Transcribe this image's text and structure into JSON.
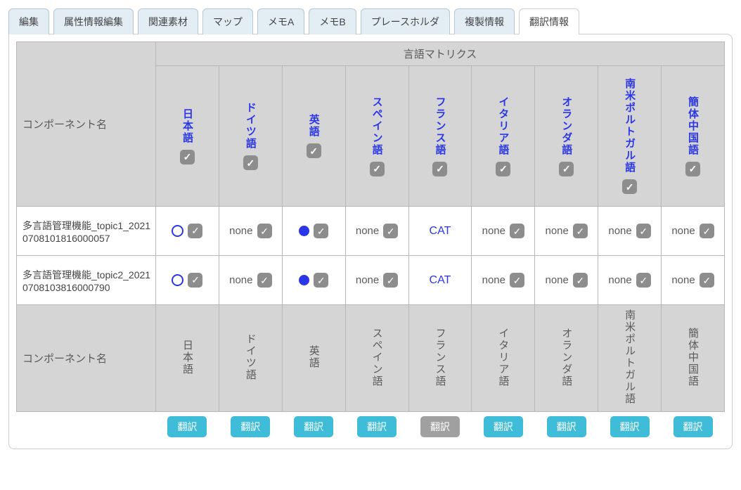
{
  "tabs": [
    {
      "label": "編集",
      "active": false
    },
    {
      "label": "属性情報編集",
      "active": false
    },
    {
      "label": "関連素材",
      "active": false
    },
    {
      "label": "マップ",
      "active": false
    },
    {
      "label": "メモA",
      "active": false
    },
    {
      "label": "メモB",
      "active": false
    },
    {
      "label": "プレースホルダ",
      "active": false
    },
    {
      "label": "複製情報",
      "active": false
    },
    {
      "label": "翻訳情報",
      "active": true
    }
  ],
  "matrix_title": "言語マトリクス",
  "component_col_label": "コンポーネント名",
  "languages": [
    "日本語",
    "ドイツ語",
    "英語",
    "スペイン語",
    "フランス語",
    "イタリア語",
    "オランダ語",
    "南米ポルトガル語",
    "簡体中国語"
  ],
  "rows": [
    {
      "name": "多言語管理機能_topic1_20210708101816000057",
      "cells": [
        {
          "kind": "open",
          "chk": true
        },
        {
          "kind": "none",
          "chk": true
        },
        {
          "kind": "filled",
          "chk": true
        },
        {
          "kind": "none",
          "chk": true
        },
        {
          "kind": "cat",
          "chk": false
        },
        {
          "kind": "none",
          "chk": true
        },
        {
          "kind": "none",
          "chk": true
        },
        {
          "kind": "none",
          "chk": true
        },
        {
          "kind": "none",
          "chk": true
        }
      ]
    },
    {
      "name": "多言語管理機能_topic2_20210708103816000790",
      "cells": [
        {
          "kind": "open",
          "chk": true
        },
        {
          "kind": "none",
          "chk": true
        },
        {
          "kind": "filled",
          "chk": true
        },
        {
          "kind": "none",
          "chk": true
        },
        {
          "kind": "cat",
          "chk": false
        },
        {
          "kind": "none",
          "chk": true
        },
        {
          "kind": "none",
          "chk": true
        },
        {
          "kind": "none",
          "chk": true
        },
        {
          "kind": "none",
          "chk": true
        }
      ]
    }
  ],
  "translate_label": "翻訳",
  "translate_enabled": [
    true,
    true,
    true,
    true,
    false,
    true,
    true,
    true,
    true
  ],
  "labels": {
    "none": "none",
    "cat": "CAT"
  },
  "colors": {
    "tab_bg": "#e2edf4",
    "tab_border": "#b6c6d2",
    "panel_border": "#cdcdcd",
    "header_bg": "#d5d5d5",
    "cell_border": "#b7b7b7",
    "link_blue": "#2a36e8",
    "btn_teal": "#3fbcd7",
    "btn_gray": "#a0a0a0",
    "chk_bg": "#8d8d8d"
  }
}
